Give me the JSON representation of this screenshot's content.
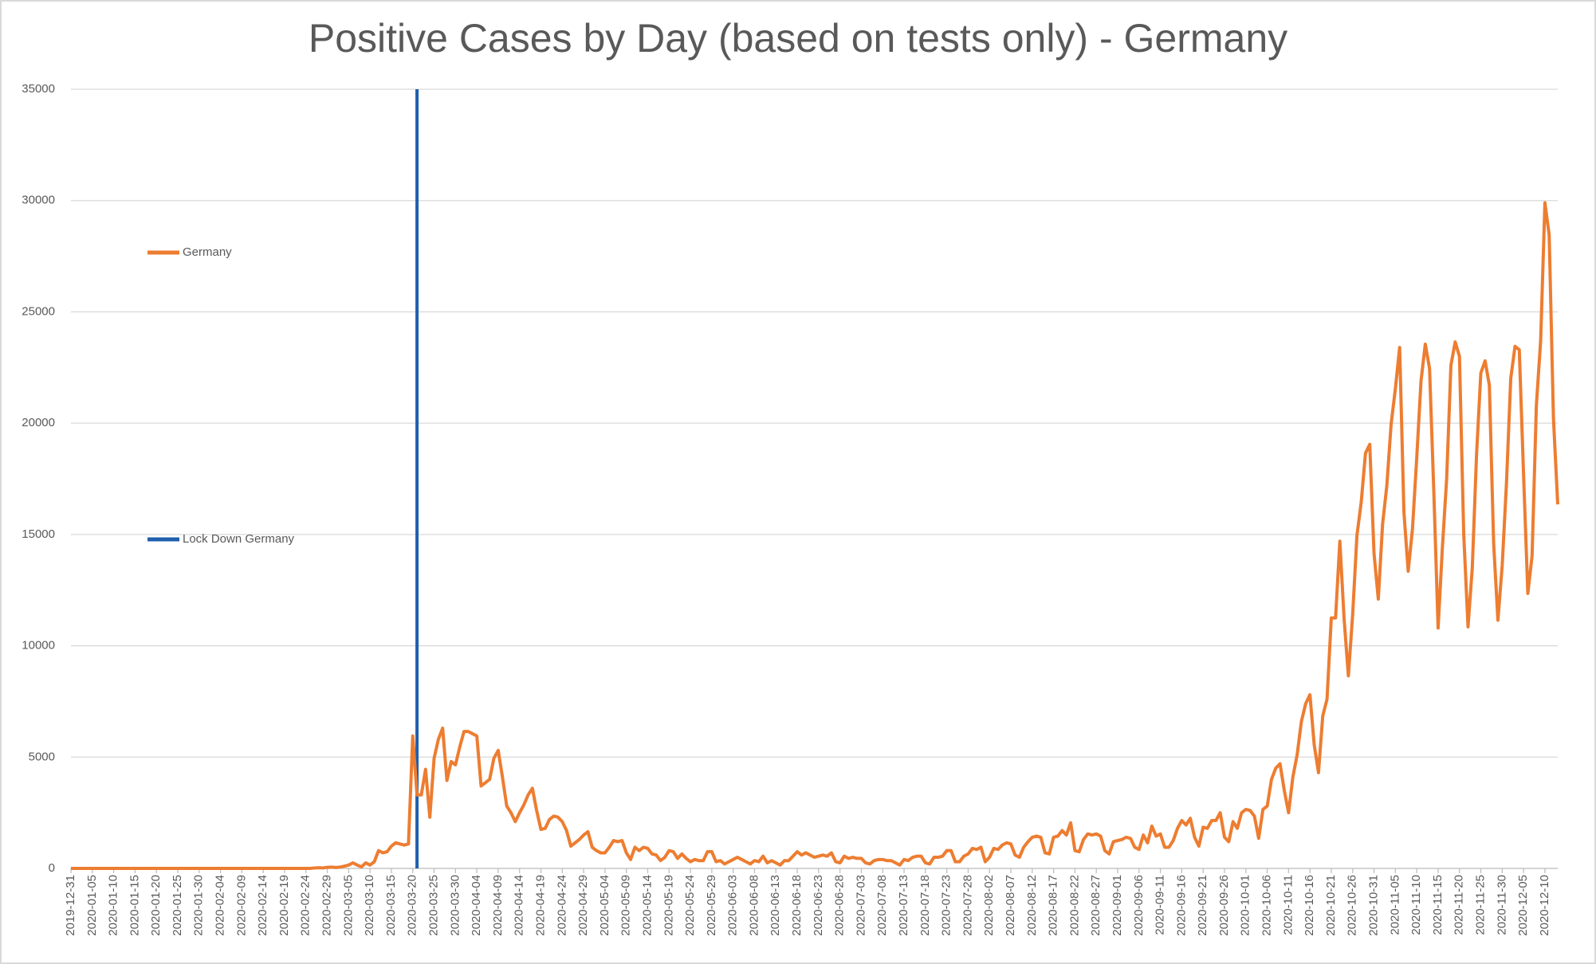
{
  "chart_data": {
    "type": "line",
    "title": "Positive Cases by Day (based on tests only) - Germany",
    "categories": [
      "2019-12-31",
      null,
      null,
      null,
      null,
      "2020-01-05",
      null,
      null,
      null,
      null,
      "2020-01-10",
      null,
      null,
      null,
      null,
      "2020-01-15",
      null,
      null,
      null,
      null,
      "2020-01-20",
      null,
      null,
      null,
      null,
      "2020-01-25",
      null,
      null,
      null,
      null,
      "2020-01-30",
      null,
      null,
      null,
      null,
      "2020-02-04",
      null,
      null,
      null,
      null,
      "2020-02-09",
      null,
      null,
      null,
      null,
      "2020-02-14",
      null,
      null,
      null,
      null,
      "2020-02-19",
      null,
      null,
      null,
      null,
      "2020-02-24",
      null,
      null,
      null,
      null,
      "2020-02-29",
      null,
      null,
      null,
      null,
      "2020-03-05",
      null,
      null,
      null,
      null,
      "2020-03-10",
      null,
      null,
      null,
      null,
      "2020-03-15",
      null,
      null,
      null,
      null,
      "2020-03-20",
      null,
      null,
      null,
      null,
      "2020-03-25",
      null,
      null,
      null,
      null,
      "2020-03-30",
      null,
      null,
      null,
      null,
      "2020-04-04",
      null,
      null,
      null,
      null,
      "2020-04-09",
      null,
      null,
      null,
      null,
      "2020-04-14",
      null,
      null,
      null,
      null,
      "2020-04-19",
      null,
      null,
      null,
      null,
      "2020-04-24",
      null,
      null,
      null,
      null,
      "2020-04-29",
      null,
      null,
      null,
      null,
      "2020-05-04",
      null,
      null,
      null,
      null,
      "2020-05-09",
      null,
      null,
      null,
      null,
      "2020-05-14",
      null,
      null,
      null,
      null,
      "2020-05-19",
      null,
      null,
      null,
      null,
      "2020-05-24",
      null,
      null,
      null,
      null,
      "2020-05-29",
      null,
      null,
      null,
      null,
      "2020-06-03",
      null,
      null,
      null,
      null,
      "2020-06-08",
      null,
      null,
      null,
      null,
      "2020-06-13",
      null,
      null,
      null,
      null,
      "2020-06-18",
      null,
      null,
      null,
      null,
      "2020-06-23",
      null,
      null,
      null,
      null,
      "2020-06-28",
      null,
      null,
      null,
      null,
      "2020-07-03",
      null,
      null,
      null,
      null,
      "2020-07-08",
      null,
      null,
      null,
      null,
      "2020-07-13",
      null,
      null,
      null,
      null,
      "2020-07-18",
      null,
      null,
      null,
      null,
      "2020-07-23",
      null,
      null,
      null,
      null,
      "2020-07-28",
      null,
      null,
      null,
      null,
      "2020-08-02",
      null,
      null,
      null,
      null,
      "2020-08-07",
      null,
      null,
      null,
      null,
      "2020-08-12",
      null,
      null,
      null,
      null,
      "2020-08-17",
      null,
      null,
      null,
      null,
      "2020-08-22",
      null,
      null,
      null,
      null,
      "2020-08-27",
      null,
      null,
      null,
      null,
      "2020-09-01",
      null,
      null,
      null,
      null,
      "2020-09-06",
      null,
      null,
      null,
      null,
      "2020-09-11",
      null,
      null,
      null,
      null,
      "2020-09-16",
      null,
      null,
      null,
      null,
      "2020-09-21",
      null,
      null,
      null,
      null,
      "2020-09-26",
      null,
      null,
      null,
      null,
      "2020-10-01",
      null,
      null,
      null,
      null,
      "2020-10-06",
      null,
      null,
      null,
      null,
      "2020-10-11",
      null,
      null,
      null,
      null,
      "2020-10-16",
      null,
      null,
      null,
      null,
      "2020-10-21",
      null,
      null,
      null,
      null,
      "2020-10-26",
      null,
      null,
      null,
      null,
      "2020-10-31",
      null,
      null,
      null,
      null,
      "2020-11-05",
      null,
      null,
      null,
      null,
      "2020-11-10",
      null,
      null,
      null,
      null,
      "2020-11-15",
      null,
      null,
      null,
      null,
      "2020-11-20",
      null,
      null,
      null,
      null,
      "2020-11-25",
      null,
      null,
      null,
      null,
      "2020-11-30",
      null,
      null,
      null,
      null,
      "2020-12-05",
      null,
      null,
      null,
      null,
      "2020-12-10",
      null,
      null,
      null
    ],
    "series": [
      {
        "name": "Germany",
        "color": "#ed7d31",
        "values": [
          0,
          0,
          0,
          0,
          0,
          0,
          0,
          0,
          0,
          0,
          0,
          0,
          0,
          0,
          0,
          0,
          0,
          0,
          0,
          0,
          0,
          0,
          0,
          0,
          0,
          0,
          0,
          0,
          0,
          0,
          0,
          0,
          0,
          0,
          0,
          0,
          0,
          0,
          0,
          0,
          0,
          0,
          0,
          0,
          0,
          0,
          0,
          0,
          0,
          0,
          0,
          0,
          0,
          0,
          0,
          0,
          0,
          20,
          30,
          20,
          50,
          60,
          40,
          60,
          100,
          150,
          250,
          150,
          70,
          250,
          150,
          300,
          800,
          700,
          750,
          1000,
          1150,
          1100,
          1050,
          1100,
          5950,
          3300,
          3300,
          4450,
          2300,
          4950,
          5800,
          6300,
          3950,
          4800,
          4650,
          5450,
          6150,
          6150,
          6050,
          5950,
          3700,
          3850,
          4000,
          4950,
          5300,
          4100,
          2800,
          2500,
          2100,
          2500,
          2850,
          3300,
          3600,
          2600,
          1750,
          1800,
          2200,
          2350,
          2300,
          2100,
          1700,
          1000,
          1150,
          1300,
          1500,
          1650,
          950,
          800,
          700,
          700,
          950,
          1250,
          1200,
          1250,
          700,
          400,
          950,
          800,
          950,
          900,
          650,
          600,
          350,
          500,
          800,
          750,
          450,
          650,
          450,
          300,
          400,
          350,
          350,
          750,
          750,
          300,
          350,
          200,
          300,
          400,
          500,
          400,
          300,
          200,
          350,
          300,
          550,
          250,
          350,
          250,
          150,
          350,
          350,
          550,
          750,
          600,
          700,
          600,
          500,
          550,
          600,
          550,
          700,
          300,
          250,
          550,
          450,
          500,
          450,
          450,
          250,
          200,
          350,
          400,
          400,
          350,
          350,
          250,
          150,
          400,
          350,
          500,
          550,
          550,
          250,
          200,
          500,
          500,
          550,
          800,
          800,
          300,
          300,
          550,
          650,
          900,
          850,
          950,
          300,
          500,
          900,
          850,
          1050,
          1150,
          1100,
          600,
          500,
          950,
          1200,
          1400,
          1450,
          1400,
          700,
          650,
          1400,
          1450,
          1700,
          1500,
          2050,
          800,
          750,
          1300,
          1550,
          1500,
          1550,
          1450,
          800,
          650,
          1200,
          1250,
          1300,
          1400,
          1350,
          950,
          850,
          1500,
          1150,
          1900,
          1450,
          1550,
          950,
          950,
          1250,
          1800,
          2150,
          1950,
          2250,
          1400,
          1000,
          1850,
          1800,
          2150,
          2150,
          2500,
          1400,
          1200,
          2100,
          1800,
          2500,
          2650,
          2600,
          2350,
          1350,
          2650,
          2800,
          4000,
          4500,
          4700,
          3500,
          2500,
          4100,
          5100,
          6600,
          7400,
          7800,
          5550,
          4300,
          6850,
          7600,
          11250,
          11250,
          14700,
          11200,
          8650,
          11400,
          14950,
          16450,
          18650,
          19050,
          14150,
          12100,
          15450,
          17200,
          19950,
          21550,
          23400,
          16000,
          13350,
          15250,
          18450,
          21900,
          23550,
          22450,
          16900,
          10800,
          14400,
          17500,
          22600,
          23650,
          23000,
          15000,
          10850,
          13500,
          18600,
          22250,
          22800,
          21700,
          14600,
          11150,
          13600,
          17300,
          22000,
          23450,
          23300,
          17700,
          12350,
          14050,
          20800,
          23700,
          29900,
          28450,
          20200,
          16350
        ]
      }
    ],
    "vline": {
      "name": "Lock Down Germany",
      "color": "#1f5fad",
      "index": 81
    },
    "ylim": [
      0,
      35000
    ],
    "yticks": [
      0,
      5000,
      10000,
      15000,
      20000,
      25000,
      30000,
      35000
    ],
    "grid": true
  }
}
